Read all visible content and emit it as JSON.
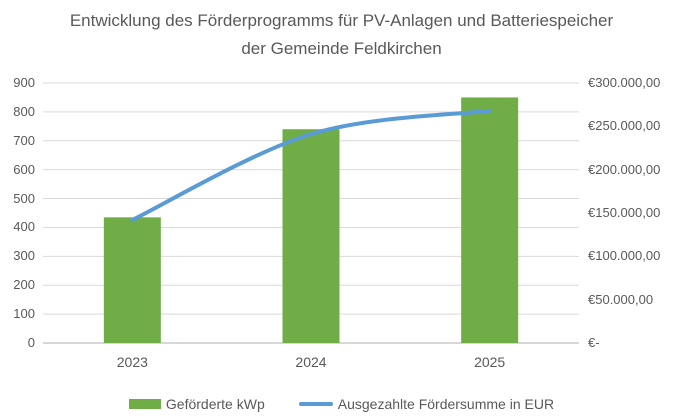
{
  "chart_data": {
    "type": "combo",
    "title": "Entwicklung des Förderprogramms für PV-Anlagen und Batteriespeicher der Gemeinde Feldkirchen",
    "categories": [
      "2023",
      "2024",
      "2025"
    ],
    "series": [
      {
        "name": "Geförderte kWp",
        "type": "bar",
        "axis": "left",
        "color": "#70AD47",
        "values": [
          435,
          740,
          850
        ]
      },
      {
        "name": "Ausgezahlte Fördersumme in EUR",
        "type": "line",
        "axis": "right",
        "color": "#5B9BD5",
        "values": [
          142000,
          241000,
          268000
        ]
      }
    ],
    "left_axis": {
      "min": 0,
      "max": 900,
      "step": 100,
      "tick_labels": [
        "0",
        "100",
        "200",
        "300",
        "400",
        "500",
        "600",
        "700",
        "800",
        "900"
      ]
    },
    "right_axis": {
      "min": 0,
      "max": 300000,
      "step": 50000,
      "tick_labels": [
        "€-",
        "€50.000,00",
        "€100.000,00",
        "€150.000,00",
        "€200.000,00",
        "€250.000,00",
        "€300.000,00"
      ]
    },
    "grid": true,
    "legend_position": "bottom",
    "colors": {
      "grid_line": "#D9D9D9",
      "axis_line": "#BFBFBF",
      "text": "#595959",
      "background": "#FFFFFF"
    }
  }
}
